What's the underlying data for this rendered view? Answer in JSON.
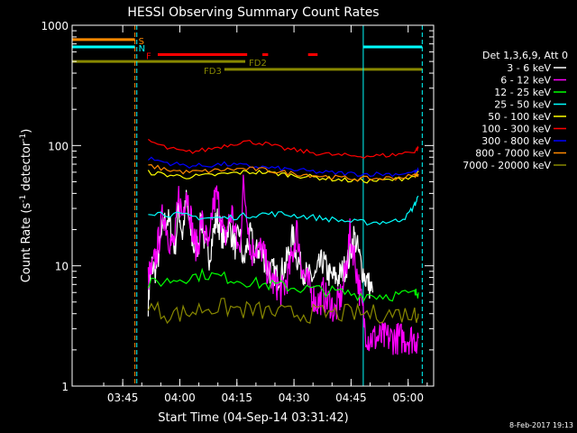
{
  "chart_data": {
    "type": "line",
    "title": "HESSI Observing Summary Count Rates",
    "xlabel": "Start Time (04-Sep-14 03:31:42)",
    "ylabel_main": "Count Rate (s",
    "ylabel_sup": "-1",
    "ylabel_mid": " detector",
    "ylabel_end": ")",
    "x_unit": "minutes after 03:31:42 on 04-Sep-14",
    "xlim": [
      0,
      95
    ],
    "ylim": [
      1,
      1000
    ],
    "y_scale": "log",
    "x_ticks": [
      {
        "v": 13.3,
        "label": "03:45"
      },
      {
        "v": 28.3,
        "label": "04:00"
      },
      {
        "v": 43.3,
        "label": "04:15"
      },
      {
        "v": 58.3,
        "label": "04:30"
      },
      {
        "v": 73.3,
        "label": "04:45"
      },
      {
        "v": 88.3,
        "label": "05:00"
      }
    ],
    "y_ticks": [
      {
        "v": 1,
        "label": "1"
      },
      {
        "v": 10,
        "label": "10"
      },
      {
        "v": 100,
        "label": "100"
      },
      {
        "v": 1000,
        "label": "1000"
      }
    ],
    "legend_header": "Det 1,3,6,9, Att 0",
    "legend_position": "right",
    "series": [
      {
        "name": "3 - 6 keV",
        "color": "#ffffff",
        "x": [
          20,
          20.5,
          21,
          22,
          23,
          24,
          25,
          26,
          27,
          28,
          29,
          30,
          31,
          32,
          33,
          34,
          35,
          36,
          37,
          38,
          39,
          40,
          41,
          42,
          43,
          44,
          45,
          46,
          47,
          48,
          49,
          50,
          51,
          52,
          53,
          54,
          55,
          56,
          57,
          58,
          59,
          60,
          61,
          62,
          63,
          64,
          65,
          66,
          67,
          68,
          69,
          70,
          71,
          72,
          73,
          74,
          75,
          76,
          77,
          78,
          79
        ],
        "y": [
          5,
          8,
          10,
          9,
          14,
          22,
          25,
          20,
          14,
          30,
          18,
          35,
          20,
          14,
          15,
          25,
          14,
          12,
          18,
          25,
          20,
          15,
          22,
          18,
          14,
          20,
          10,
          15,
          18,
          12,
          14,
          13,
          10,
          9,
          9,
          8,
          9,
          10,
          13,
          18,
          12,
          10,
          9,
          8,
          8,
          8,
          10,
          11,
          9,
          8,
          8,
          8,
          9,
          10,
          12,
          18,
          14,
          10,
          8,
          7,
          6
        ]
      },
      {
        "name": "6 - 12 keV",
        "color": "#ff00ff",
        "x": [
          20,
          21,
          22,
          23,
          24,
          25,
          26,
          27,
          28,
          29,
          30,
          31,
          32,
          33,
          34,
          35,
          36,
          37,
          38,
          39,
          40,
          41,
          42,
          43,
          44,
          45,
          46,
          47,
          48,
          49,
          50,
          51,
          52,
          53,
          54,
          55,
          56,
          57,
          58,
          59,
          60,
          61,
          62,
          63,
          64,
          65,
          66,
          67,
          68,
          69,
          70,
          71,
          72,
          73,
          74,
          75,
          76,
          77,
          78,
          79,
          80,
          81,
          82,
          83,
          84,
          85,
          86,
          87,
          88,
          89,
          90,
          91
        ],
        "y": [
          8,
          9,
          12,
          18,
          28,
          20,
          15,
          16,
          38,
          26,
          45,
          28,
          16,
          14,
          24,
          18,
          13,
          32,
          38,
          28,
          16,
          22,
          28,
          17,
          13,
          45,
          28,
          12,
          15,
          13,
          14,
          10,
          8,
          7,
          7,
          6,
          7,
          9,
          13,
          20,
          12,
          8,
          7,
          6,
          5,
          5,
          6,
          5,
          5,
          4,
          5,
          6,
          10,
          18,
          13,
          8,
          5,
          3,
          2.5,
          2.5,
          2.5,
          2.5,
          2.5,
          2.5,
          2.5,
          2.5,
          2.5,
          2.5,
          2.5,
          2.5,
          2.5,
          2.5
        ]
      },
      {
        "name": "12 - 25 keV",
        "color": "#00ff00",
        "x": [
          20,
          25,
          30,
          35,
          40,
          45,
          50,
          55,
          60,
          65,
          70,
          75,
          80,
          85,
          90,
          91
        ],
        "y": [
          7,
          7.5,
          8,
          8.5,
          8,
          7.5,
          7,
          6.8,
          6.5,
          6.3,
          6,
          5.8,
          5.7,
          5.7,
          5.8,
          6
        ]
      },
      {
        "name": "25 - 50 keV",
        "color": "#00ffff",
        "x": [
          20,
          25,
          30,
          35,
          40,
          45,
          50,
          55,
          60,
          65,
          70,
          75,
          80,
          85,
          88,
          90,
          91
        ],
        "y": [
          28,
          27,
          26,
          25,
          25,
          26,
          27,
          27,
          26,
          25,
          24,
          23,
          23,
          23.5,
          26,
          32,
          38
        ]
      },
      {
        "name": "50 - 100 keV",
        "color": "#ffff00",
        "x": [
          20,
          25,
          30,
          35,
          40,
          45,
          50,
          55,
          60,
          65,
          70,
          75,
          80,
          85,
          90,
          91
        ],
        "y": [
          60,
          57,
          55,
          56,
          58,
          60,
          60,
          58,
          56,
          54,
          52,
          51,
          51,
          52,
          56,
          60
        ]
      },
      {
        "name": "100 - 300 keV",
        "color": "#ff0000",
        "x": [
          20,
          25,
          30,
          35,
          40,
          45,
          50,
          55,
          60,
          65,
          70,
          75,
          80,
          85,
          90,
          91
        ],
        "y": [
          110,
          95,
          88,
          92,
          100,
          108,
          105,
          95,
          90,
          86,
          83,
          82,
          82,
          84,
          90,
          95
        ]
      },
      {
        "name": "300 - 800 keV",
        "color": "#0000ff",
        "x": [
          20,
          25,
          30,
          35,
          40,
          45,
          50,
          55,
          60,
          65,
          70,
          75,
          80,
          85,
          90,
          91
        ],
        "y": [
          78,
          72,
          68,
          68,
          70,
          68,
          66,
          64,
          62,
          60,
          59,
          58,
          58,
          58,
          60,
          62
        ]
      },
      {
        "name": "800 - 7000 keV",
        "color": "#ff8800",
        "x": [
          20,
          25,
          30,
          35,
          40,
          45,
          50,
          55,
          60,
          65,
          70,
          75,
          80,
          85,
          90,
          91
        ],
        "y": [
          68,
          63,
          60,
          61,
          63,
          64,
          63,
          60,
          58,
          56,
          54,
          53,
          53,
          54,
          56,
          58
        ]
      },
      {
        "name": "7000 - 20000 keV",
        "color": "#888800",
        "x": [
          20,
          25,
          30,
          35,
          40,
          45,
          50,
          55,
          60,
          65,
          70,
          75,
          80,
          85,
          90,
          91
        ],
        "y": [
          4.5,
          4,
          4,
          4.5,
          4.5,
          4.3,
          4.2,
          4,
          4,
          4,
          4,
          4,
          4,
          4,
          4,
          4
        ]
      }
    ],
    "flag_bars": [
      {
        "label": "S",
        "color": "#ff8800",
        "y": 760,
        "segments": [
          [
            0,
            16.5
          ]
        ]
      },
      {
        "label": "N",
        "color": "#00ffff",
        "y": 660,
        "segments": [
          [
            0,
            16.5
          ],
          [
            76.5,
            92
          ]
        ]
      },
      {
        "label": "F",
        "color": "#ff0000",
        "y": 570,
        "segments": [
          [
            22.5,
            46
          ],
          [
            50,
            51.5
          ],
          [
            62,
            64.5
          ]
        ]
      },
      {
        "label": "FD2",
        "color": "#888800",
        "y": 500,
        "segments": [
          [
            0,
            45.5
          ]
        ]
      },
      {
        "label": "FD3",
        "color": "#888800",
        "y": 430,
        "segments": [
          [
            40,
            92
          ]
        ]
      }
    ],
    "vertical_lines": [
      {
        "x": 0,
        "color": "#00ffff",
        "style": "solid"
      },
      {
        "x": 16.5,
        "color": "#ff8800",
        "style": "dashed"
      },
      {
        "x": 17.0,
        "color": "#00ffff",
        "style": "dashed"
      },
      {
        "x": 76.5,
        "color": "#00ffff",
        "style": "solid"
      },
      {
        "x": 92,
        "color": "#00ffff",
        "style": "dashed"
      }
    ]
  },
  "footer_date": "8-Feb-2017 19:13"
}
